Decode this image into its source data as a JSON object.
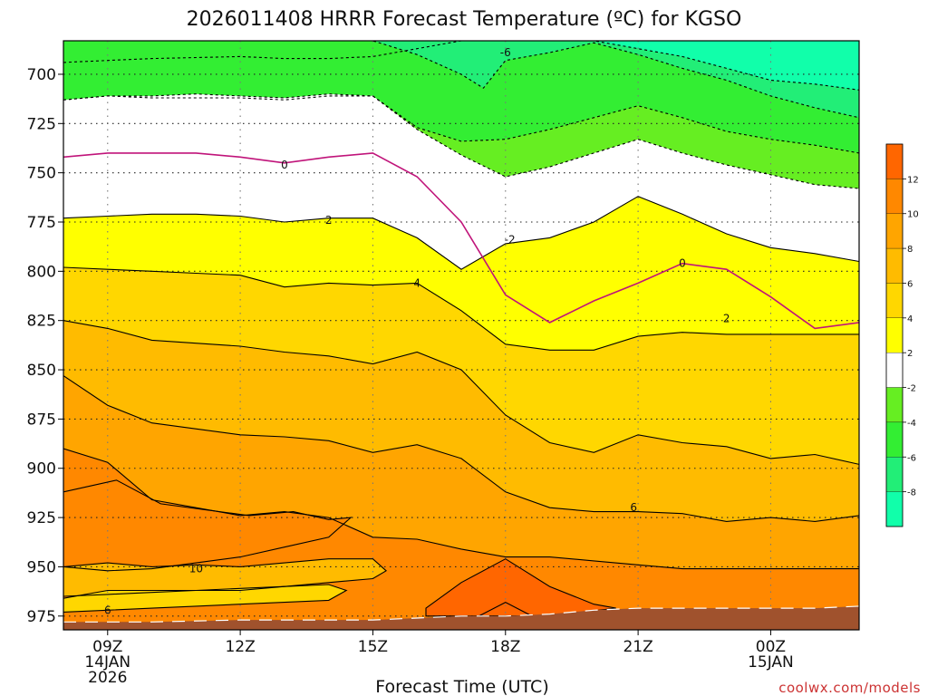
{
  "chart_data": {
    "type": "heatmap",
    "title": "2026011408 HRRR Forecast Temperature (ºC) for KGSO",
    "xlabel": "Forecast Time (UTC)",
    "ylabel": "",
    "credit": "coolwx.com/models",
    "x_ticks": [
      {
        "hour": 9,
        "lines": [
          "09Z",
          "14JAN",
          "2026"
        ]
      },
      {
        "hour": 12,
        "lines": [
          "12Z"
        ]
      },
      {
        "hour": 15,
        "lines": [
          "15Z"
        ]
      },
      {
        "hour": 18,
        "lines": [
          "18Z"
        ]
      },
      {
        "hour": 21,
        "lines": [
          "21Z"
        ]
      },
      {
        "hour": 24,
        "lines": [
          "00Z",
          "15JAN"
        ]
      }
    ],
    "xlim": [
      8,
      26
    ],
    "ylim": [
      982,
      683
    ],
    "y_ticks": [
      700,
      725,
      750,
      775,
      800,
      825,
      850,
      875,
      900,
      925,
      950,
      975
    ],
    "colorbar": {
      "ticks": [
        12,
        10,
        8,
        6,
        4,
        2,
        -2,
        -4,
        -6,
        -8
      ],
      "bands": [
        {
          "min": 12,
          "max": 14,
          "color": "#ff6600"
        },
        {
          "min": 10,
          "max": 12,
          "color": "#ff8800"
        },
        {
          "min": 8,
          "max": 10,
          "color": "#ffa500"
        },
        {
          "min": 6,
          "max": 8,
          "color": "#ffbb00"
        },
        {
          "min": 4,
          "max": 6,
          "color": "#ffd700"
        },
        {
          "min": 2,
          "max": 4,
          "color": "#ffff00"
        },
        {
          "min": -2,
          "max": 2,
          "color": "#ffffff"
        },
        {
          "min": -4,
          "max": -2,
          "color": "#66ee22"
        },
        {
          "min": -6,
          "max": -4,
          "color": "#33ee33"
        },
        {
          "min": -8,
          "max": -6,
          "color": "#22ee77"
        },
        {
          "min": -10,
          "max": -8,
          "color": "#11ffaa"
        }
      ]
    },
    "contour_labels": [
      {
        "text": "-6",
        "hour": 18.0,
        "p": 689
      },
      {
        "text": "0",
        "hour": 13.0,
        "p": 746
      },
      {
        "text": "2",
        "hour": 14.0,
        "p": 774
      },
      {
        "text": "-2",
        "hour": 18.1,
        "p": 784
      },
      {
        "text": "0",
        "hour": 22.0,
        "p": 796
      },
      {
        "text": "4",
        "hour": 16.0,
        "p": 806
      },
      {
        "text": "2",
        "hour": 23.0,
        "p": 824
      },
      {
        "text": "6",
        "hour": 20.9,
        "p": 920
      },
      {
        "text": "10",
        "hour": 11.0,
        "p": 951
      },
      {
        "text": "6",
        "hour": 9.0,
        "p": 972
      }
    ],
    "series": [
      {
        "x": [
          8,
          9,
          10,
          12,
          13,
          14,
          15,
          16,
          17,
          18,
          19,
          20,
          21,
          22,
          23,
          24,
          25,
          26
        ],
        "y": [
          694,
          693,
          692,
          691,
          692,
          692,
          691,
          687,
          683,
          683,
          683,
          683,
          683,
          683,
          683,
          683,
          683,
          683
        ],
        "color": "#11ffaa",
        "value": -8
      },
      {
        "x": [
          8,
          14,
          15,
          16,
          17,
          18,
          19,
          20,
          21,
          22,
          23,
          24,
          25,
          26
        ],
        "y": [
          683,
          683,
          683,
          683,
          683,
          683,
          683,
          683,
          687,
          691,
          697,
          703,
          705,
          708
        ],
        "color": "#22ee77",
        "value": -6
      },
      {
        "x": [
          8,
          9,
          10,
          12,
          13,
          14,
          15,
          16,
          17,
          17.5,
          18,
          19,
          20,
          21,
          22,
          23,
          24,
          25,
          26
        ],
        "y": [
          683,
          683,
          683,
          683,
          683,
          683,
          683,
          690,
          700,
          707,
          693,
          689,
          684,
          690,
          697,
          703,
          711,
          717,
          722
        ],
        "color": "#33ee33",
        "value": -6
      },
      {
        "x": [
          8,
          9,
          10,
          12,
          13,
          14,
          15,
          16,
          17,
          18,
          19,
          20,
          21,
          22,
          23,
          24,
          25,
          26
        ],
        "y": [
          713,
          711,
          712,
          712,
          713,
          711,
          711,
          727,
          734,
          733,
          728,
          722,
          716,
          722,
          729,
          733,
          736,
          740
        ],
        "color": "#66ee22",
        "value": -4
      },
      {
        "x": [
          8,
          9,
          10,
          11,
          12,
          13,
          14,
          15,
          16,
          17,
          18,
          19,
          20,
          21,
          22,
          23,
          24,
          25,
          26
        ],
        "y": [
          713,
          711,
          711,
          710,
          711,
          712,
          710,
          711,
          728,
          741,
          752,
          747,
          740,
          733,
          740,
          746,
          751,
          756,
          758
        ],
        "color": "#ffffff",
        "value": -2
      },
      {
        "x": [
          8,
          9,
          10,
          11,
          12,
          13,
          14,
          15,
          16,
          17,
          18,
          19,
          20,
          21,
          22,
          23,
          24,
          25,
          26
        ],
        "y": [
          773,
          772,
          771,
          771,
          772,
          775,
          773,
          773,
          783,
          799,
          786,
          783,
          775,
          762,
          771,
          781,
          788,
          791,
          795
        ],
        "color": "#ffff00",
        "value": 2
      },
      {
        "x": [
          8,
          9,
          10,
          11,
          12,
          13,
          14,
          15,
          16,
          17,
          18,
          19,
          20,
          21,
          22,
          23,
          24,
          25,
          26
        ],
        "y": [
          798,
          799,
          800,
          801,
          802,
          808,
          806,
          807,
          806,
          820,
          837,
          840,
          840,
          833,
          831,
          832,
          832,
          832,
          832
        ],
        "color": "#ffd700",
        "value": 4
      },
      {
        "x": [
          8,
          9,
          10,
          12,
          13,
          14,
          15,
          16,
          17,
          18,
          19,
          20,
          21,
          22,
          23,
          24,
          25,
          26
        ],
        "y": [
          825,
          829,
          835,
          838,
          841,
          843,
          847,
          841,
          850,
          873,
          887,
          892,
          883,
          887,
          889,
          895,
          893,
          898
        ],
        "color": "#ffbb00",
        "value": 6
      },
      {
        "x": [
          8,
          9,
          10,
          12,
          13,
          14,
          15,
          16,
          17,
          18,
          19,
          20,
          21,
          22,
          23,
          24,
          25,
          26
        ],
        "y": [
          853,
          868,
          877,
          883,
          884,
          886,
          892,
          888,
          895,
          912,
          920,
          922,
          922,
          923,
          927,
          925,
          927,
          924
        ],
        "color": "#ffa500",
        "value": 8
      },
      {
        "x": [
          8,
          9,
          10,
          12,
          13,
          14,
          15,
          16,
          17,
          18,
          19,
          20,
          21,
          22,
          23,
          24,
          25,
          26
        ],
        "y": [
          890,
          897,
          916,
          924,
          922,
          925,
          935,
          936,
          941,
          945,
          945,
          947,
          949,
          951,
          951,
          951,
          951,
          951
        ],
        "color": "#ff8800",
        "value": 10
      }
    ],
    "closed_regions": [
      {
        "value": 10,
        "color": "#ff8800",
        "x": [
          8,
          8.6,
          9.2,
          10.2,
          11.2,
          12.2,
          13.2,
          14.0,
          14.5,
          14.0,
          13.0,
          12.0,
          11.0,
          10.0,
          9.0,
          8.0
        ],
        "y": [
          912,
          909,
          906,
          918,
          921,
          924,
          922,
          926,
          925,
          935,
          940,
          945,
          948,
          951,
          952,
          950
        ]
      },
      {
        "value": 6,
        "color": "#ffbb00",
        "x": [
          8,
          9,
          10,
          11,
          12,
          13,
          14,
          15,
          15.3,
          15.0,
          14.0,
          13.0,
          12.0,
          11.0,
          10.0,
          9.0,
          8.0
        ],
        "y": [
          950,
          948,
          950,
          949,
          950,
          948,
          946,
          946,
          952,
          956,
          958,
          960,
          962,
          962,
          963,
          964,
          965
        ]
      },
      {
        "value": 4,
        "color": "#ffd700",
        "x": [
          8,
          9,
          10,
          11,
          12,
          13,
          14,
          14.4,
          14.0,
          13.0,
          12.0,
          11.0,
          10.0,
          9.0,
          8.0
        ],
        "y": [
          966,
          962,
          962,
          962,
          961,
          960,
          959,
          962,
          967,
          968,
          969,
          970,
          971,
          972,
          973
        ]
      },
      {
        "value": 12,
        "color": "#ff6600",
        "x": [
          16.2,
          17.0,
          18.0,
          19.0,
          20.0,
          20.5,
          19.0,
          18.0,
          17.0,
          16.2
        ],
        "y": [
          971,
          958,
          946,
          960,
          969,
          971,
          975,
          975,
          975,
          975
        ]
      },
      {
        "value": 14,
        "color": "#ff6600",
        "x": [
          17.4,
          18.0,
          18.6
        ],
        "y": [
          975,
          968,
          975
        ]
      }
    ],
    "surface_pressure": {
      "x": [
        8,
        10,
        12,
        14,
        15,
        16,
        17,
        18,
        19,
        20,
        21,
        22,
        23,
        24,
        25,
        26
      ],
      "y": [
        978,
        978,
        977,
        977,
        977,
        976,
        975,
        975,
        974,
        972,
        971,
        971,
        971,
        971,
        971,
        970
      ]
    }
  }
}
